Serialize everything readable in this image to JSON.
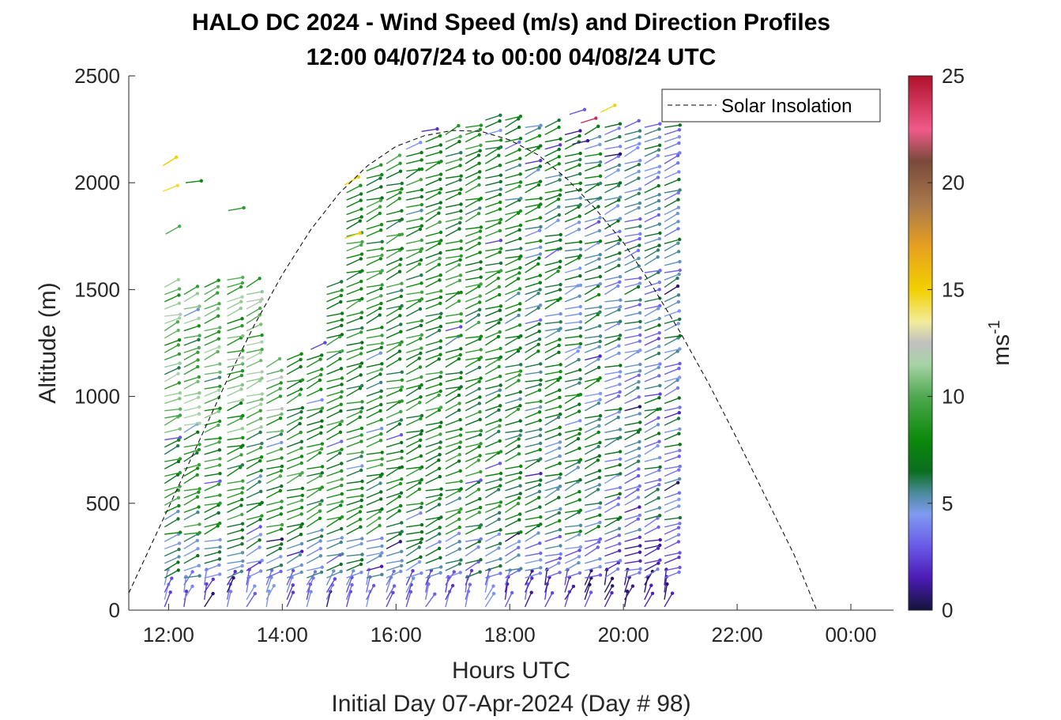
{
  "chart_data": {
    "type": "wind-barb-profile",
    "title_line1": "HALO DC 2024 - Wind Speed (m/s) and Direction Profiles",
    "title_line2": "12:00 04/07/24 to 00:00 04/08/24  UTC",
    "xlabel": "Hours UTC",
    "ylabel": "Altitude (m)",
    "footer": "Initial Day 07-Apr-2024 (Day # 98)",
    "x_unit": "hours UTC",
    "xlim": [
      11.3,
      24.75
    ],
    "ylim": [
      0,
      2500
    ],
    "x_ticks": [
      {
        "value": 12,
        "label": "12:00"
      },
      {
        "value": 14,
        "label": "14:00"
      },
      {
        "value": 16,
        "label": "16:00"
      },
      {
        "value": 18,
        "label": "18:00"
      },
      {
        "value": 20,
        "label": "20:00"
      },
      {
        "value": 22,
        "label": "22:00"
      },
      {
        "value": 24,
        "label": "00:00"
      }
    ],
    "y_ticks": [
      {
        "value": 0,
        "label": "0"
      },
      {
        "value": 500,
        "label": "500"
      },
      {
        "value": 1000,
        "label": "1000"
      },
      {
        "value": 1500,
        "label": "1500"
      },
      {
        "value": 2000,
        "label": "2000"
      },
      {
        "value": 2500,
        "label": "2500"
      }
    ],
    "colorbar": {
      "label": "ms",
      "label_superscript": "-1",
      "range": [
        0,
        25
      ],
      "ticks": [
        {
          "value": 0,
          "label": "0"
        },
        {
          "value": 5,
          "label": "5"
        },
        {
          "value": 10,
          "label": "10"
        },
        {
          "value": 15,
          "label": "15"
        },
        {
          "value": 20,
          "label": "20"
        },
        {
          "value": 25,
          "label": "25"
        }
      ],
      "stops": [
        {
          "v": 0,
          "c": "#14143c"
        },
        {
          "v": 1.5,
          "c": "#4b1bb4"
        },
        {
          "v": 3,
          "c": "#6a5ae8"
        },
        {
          "v": 4.5,
          "c": "#7f9bf0"
        },
        {
          "v": 5.5,
          "c": "#4a8a9a"
        },
        {
          "v": 6.5,
          "c": "#0a6e1e"
        },
        {
          "v": 8,
          "c": "#0b8a0b"
        },
        {
          "v": 10,
          "c": "#4fa84f"
        },
        {
          "v": 11.5,
          "c": "#a6d4a6"
        },
        {
          "v": 12.5,
          "c": "#c0c0c0"
        },
        {
          "v": 13.5,
          "c": "#f2ec9a"
        },
        {
          "v": 15,
          "c": "#f2d000"
        },
        {
          "v": 17,
          "c": "#e8a020"
        },
        {
          "v": 19,
          "c": "#a8784c"
        },
        {
          "v": 21,
          "c": "#7a4a3a"
        },
        {
          "v": 22.5,
          "c": "#f05a8a"
        },
        {
          "v": 25,
          "c": "#b0102a"
        }
      ]
    },
    "legend": {
      "entries": [
        "Solar Insolation"
      ],
      "location": "top-right"
    },
    "solar_insolation": {
      "line_style": "dashed",
      "color": "#000000",
      "points": [
        [
          11.3,
          80
        ],
        [
          12.0,
          480
        ],
        [
          12.5,
          770
        ],
        [
          13.0,
          1060
        ],
        [
          13.5,
          1330
        ],
        [
          14.0,
          1570
        ],
        [
          14.5,
          1780
        ],
        [
          15.0,
          1950
        ],
        [
          15.5,
          2080
        ],
        [
          16.0,
          2170
        ],
        [
          16.5,
          2220
        ],
        [
          17.0,
          2245
        ],
        [
          17.5,
          2240
        ],
        [
          18.0,
          2200
        ],
        [
          18.5,
          2130
        ],
        [
          19.0,
          2020
        ],
        [
          19.5,
          1880
        ],
        [
          20.0,
          1720
        ],
        [
          20.5,
          1520
        ],
        [
          21.0,
          1300
        ],
        [
          21.5,
          1060
        ],
        [
          22.0,
          800
        ],
        [
          22.5,
          530
        ],
        [
          23.0,
          260
        ],
        [
          23.4,
          0
        ],
        [
          24.75,
          0
        ]
      ]
    },
    "profiles": [
      {
        "t": 11.93,
        "top": 1520
      },
      {
        "t": 12.27,
        "top": 1510
      },
      {
        "t": 12.63,
        "top": 1540
      },
      {
        "t": 13.03,
        "top": 1560
      },
      {
        "t": 13.37,
        "top": 1540
      },
      {
        "t": 13.72,
        "top": 1170
      },
      {
        "t": 14.08,
        "top": 1190
      },
      {
        "t": 14.43,
        "top": 1200
      },
      {
        "t": 14.78,
        "top": 1520
      },
      {
        "t": 15.13,
        "top": 1980
      },
      {
        "t": 15.48,
        "top": 2080
      },
      {
        "t": 15.83,
        "top": 2120
      },
      {
        "t": 16.18,
        "top": 2180
      },
      {
        "t": 16.52,
        "top": 2220
      },
      {
        "t": 16.87,
        "top": 2230
      },
      {
        "t": 17.22,
        "top": 2280
      },
      {
        "t": 17.57,
        "top": 2300
      },
      {
        "t": 17.92,
        "top": 2310
      },
      {
        "t": 18.27,
        "top": 2280
      },
      {
        "t": 18.62,
        "top": 2280
      },
      {
        "t": 18.97,
        "top": 2250
      },
      {
        "t": 19.32,
        "top": 2230
      },
      {
        "t": 19.67,
        "top": 2270
      },
      {
        "t": 20.02,
        "top": 2270
      },
      {
        "t": 20.37,
        "top": 2260
      },
      {
        "t": 20.72,
        "top": 2260
      }
    ],
    "isolated_barbs": [
      {
        "t": 11.9,
        "alt": 2080,
        "speed": 15
      },
      {
        "t": 11.9,
        "alt": 1960,
        "speed": 14.5
      },
      {
        "t": 12.3,
        "alt": 2000,
        "speed": 8
      },
      {
        "t": 11.95,
        "alt": 1760,
        "speed": 10
      },
      {
        "t": 13.05,
        "alt": 1870,
        "speed": 9
      },
      {
        "t": 15.1,
        "alt": 1990,
        "speed": 15
      },
      {
        "t": 15.1,
        "alt": 1740,
        "speed": 15
      },
      {
        "t": 14.5,
        "alt": 1220,
        "speed": 2.5
      },
      {
        "t": 16.45,
        "alt": 2240,
        "speed": 2
      },
      {
        "t": 19.05,
        "alt": 2320,
        "speed": 3
      },
      {
        "t": 19.6,
        "alt": 2330,
        "speed": 14.8
      },
      {
        "t": 19.25,
        "alt": 2280,
        "speed": 24
      },
      {
        "t": 19.1,
        "alt": 2180,
        "speed": 1
      }
    ]
  }
}
